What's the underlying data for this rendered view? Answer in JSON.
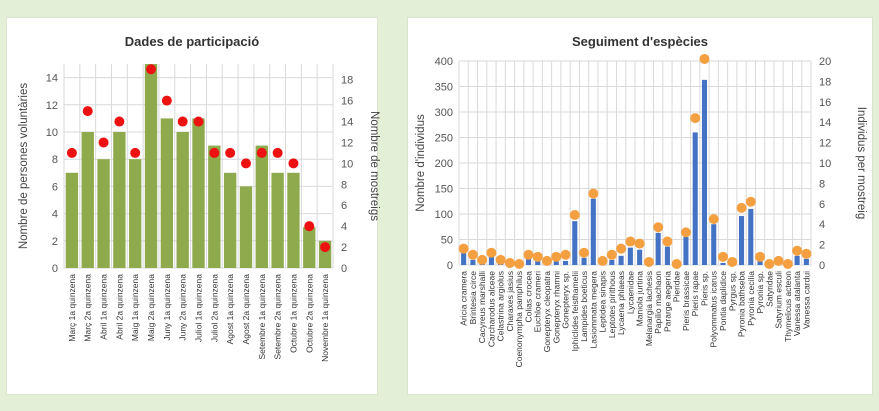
{
  "charts": [
    {
      "panel_id": "panel-left",
      "chart_data": {
        "type": "bar",
        "title": "Dades de participació",
        "ylabel": "Nombre de persones voluntàries",
        "y2label": "Nombre de mostreigs",
        "ylim": [
          0,
          15
        ],
        "y2lim": [
          0,
          19.5
        ],
        "yticks": [
          0,
          2,
          4,
          6,
          8,
          10,
          12,
          14
        ],
        "y2ticks": [
          0,
          2,
          4,
          6,
          8,
          10,
          12,
          14,
          16,
          18
        ],
        "categories": [
          "Març 1a quinzena",
          "Març 2a quinzena",
          "Abril 1a quinzena",
          "Abril 2a quinzena",
          "Maig 1a quinzena",
          "Maig 2a quinzena",
          "Juny 1a quinzena",
          "Juny 2a quinzena",
          "Juliol 1a quinzena",
          "Juliol 2a quinzena",
          "Agost 1a quinzena",
          "Agost 2a quinzena",
          "Setembre 1a quinzena",
          "Setembre 2a quinzena",
          "Octubre 1a quinzena",
          "Octubre 2a quinzena",
          "Novembre 1a quinzena"
        ],
        "series": [
          {
            "kind": "bar",
            "axis": "left",
            "values": [
              7,
              10,
              8,
              10,
              8,
              15,
              11,
              10,
              11,
              9,
              7,
              6,
              9,
              7,
              7,
              3,
              2
            ]
          },
          {
            "kind": "dots",
            "axis": "right",
            "values": [
              11,
              15,
              12,
              14,
              11,
              19,
              16,
              14,
              14,
              11,
              11,
              10,
              11,
              11,
              10,
              4,
              2
            ]
          }
        ],
        "colors": {
          "bar": "#8faa4c",
          "dot": "#ee1111"
        },
        "grid": true,
        "legend": "none"
      }
    },
    {
      "panel_id": "panel-right",
      "chart_data": {
        "type": "bar",
        "title": "Seguiment d'espècies",
        "ylabel": "Nombre d'individus",
        "y2label": "Individus per mostreig",
        "ylim": [
          0,
          400
        ],
        "y2lim": [
          0,
          20
        ],
        "yticks": [
          0,
          50,
          100,
          150,
          200,
          250,
          300,
          350,
          400
        ],
        "y2ticks": [
          0,
          2,
          4,
          6,
          8,
          10,
          12,
          14,
          16,
          18,
          20
        ],
        "categories": [
          "Aricia cramera",
          "Brintesia circe",
          "Cacyreus marshalli",
          "Carcharodus alceae",
          "Celastrina argiolus",
          "Charaxes jasius",
          "Coenonympha pamphilus",
          "Colias crocea",
          "Euchloe crameri",
          "Gonepteryx cleopatra",
          "Gonepteryx rhamni",
          "Gonepteryx sp.",
          "Iphiclides feisthamelii",
          "Lampides boeticus",
          "Lasiommata megera",
          "Leptidea sinapis",
          "Leptotes pirithous",
          "Lycaena phlaeas",
          "Lycaenidae",
          "Maniola jurtina",
          "Melanargia lachesis",
          "Papilio machaon",
          "Pararge aegeria",
          "Pieridae",
          "Pieris brassicae",
          "Pieris rapae",
          "Pieris sp.",
          "Polyommatus icarus",
          "Pontia daplidice",
          "Pyrgus sp.",
          "Pyronia bathseba",
          "Pyronia cecilia",
          "Pyronia sp.",
          "Satyridae",
          "Satyrium esculi",
          "Thymelicus acteon",
          "Vanessa atalanta",
          "Vanessa cardui"
        ],
        "series": [
          {
            "kind": "bar",
            "axis": "left",
            "values": [
              24,
              10,
              5,
              16,
              4,
              3,
              1,
              13,
              10,
              4,
              10,
              8,
              86,
              14,
              130,
              2,
              10,
              18,
              34,
              30,
              1,
              63,
              36,
              3,
              55,
              260,
              363,
              80,
              4,
              2,
              96,
              110,
              12,
              2,
              3,
              1,
              18,
              12
            ]
          },
          {
            "kind": "dots",
            "axis": "right",
            "values": [
              1.6,
              1.0,
              0.5,
              1.2,
              0.5,
              0.2,
              0.1,
              1.0,
              0.8,
              0.4,
              0.8,
              1.0,
              4.9,
              1.2,
              7.0,
              0.4,
              1.0,
              1.6,
              2.3,
              2.1,
              0.3,
              3.7,
              2.3,
              0.1,
              3.2,
              14.4,
              20.2,
              4.5,
              0.8,
              0.3,
              5.6,
              6.2,
              0.8,
              0.1,
              0.4,
              0.1,
              1.4,
              1.1
            ]
          }
        ],
        "colors": {
          "bar": "#4472c4",
          "dot": "#f5a040"
        },
        "grid": true,
        "legend": "none"
      }
    }
  ]
}
